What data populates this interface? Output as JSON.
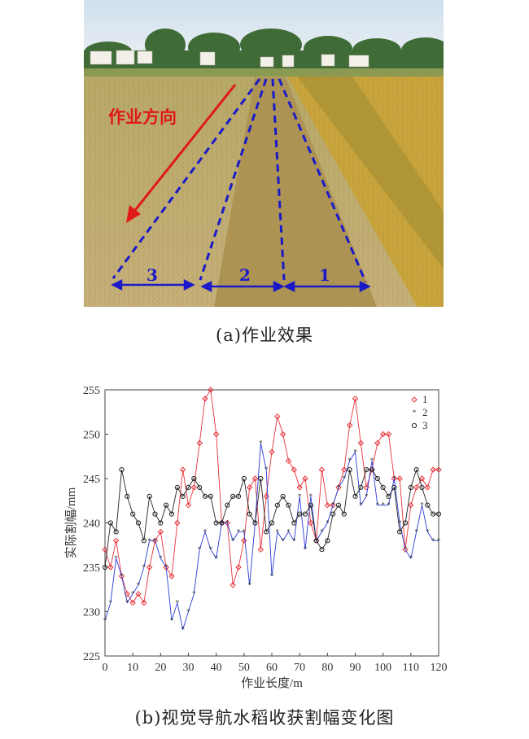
{
  "photo": {
    "direction_label": "作业方向",
    "swath_labels": [
      "3",
      "2",
      "1"
    ],
    "colors": {
      "sky": "#dfe9f2",
      "field": "#c9b46a",
      "cut": "#b59b56",
      "rice": "#c8a43a",
      "arrow": "#e11818",
      "dash": "#1a1ac8"
    }
  },
  "caption_a": "(a)作业效果",
  "caption_b": "(b)视觉导航水稻收获割幅变化图",
  "chart_data": {
    "type": "line",
    "xlabel": "作业长度/m",
    "ylabel": "实际割幅/mm",
    "xlim": [
      0,
      120
    ],
    "ylim": [
      225,
      255
    ],
    "xticks": [
      0,
      10,
      20,
      30,
      40,
      50,
      60,
      70,
      80,
      90,
      100,
      110,
      120
    ],
    "yticks": [
      225,
      230,
      235,
      240,
      245,
      250,
      255
    ],
    "legend_position": "top-right",
    "grid": false,
    "x": [
      0,
      2,
      4,
      6,
      8,
      10,
      12,
      14,
      16,
      18,
      20,
      22,
      24,
      26,
      28,
      30,
      32,
      34,
      36,
      38,
      40,
      42,
      44,
      46,
      48,
      50,
      52,
      54,
      56,
      58,
      60,
      62,
      64,
      66,
      68,
      70,
      72,
      74,
      76,
      78,
      80,
      82,
      84,
      86,
      88,
      90,
      92,
      94,
      96,
      98,
      100,
      102,
      104,
      106,
      108,
      110,
      112,
      114,
      116,
      118,
      120
    ],
    "series": [
      {
        "name": "1",
        "color": "#e8333a",
        "marker": "diamond",
        "values": [
          237,
          235,
          238,
          234,
          232,
          231,
          232,
          231,
          235,
          238,
          239,
          235,
          234,
          240,
          246,
          242,
          244,
          249,
          254,
          255,
          250,
          240,
          240,
          233,
          235,
          238,
          244,
          245,
          237,
          243,
          248,
          252,
          250,
          247,
          246,
          244,
          245,
          240,
          238,
          246,
          242,
          242,
          244,
          246,
          251,
          254,
          249,
          244,
          246,
          249,
          250,
          250,
          245,
          245,
          237,
          242,
          244,
          245,
          244,
          246,
          246
        ]
      },
      {
        "name": "2",
        "color": "#2a3bd6",
        "marker": "star",
        "values": [
          229,
          231,
          236,
          234,
          231,
          232,
          233,
          235,
          238,
          238,
          236,
          235,
          229,
          231,
          228,
          230,
          232,
          237,
          239,
          237,
          236,
          240,
          240,
          238,
          239,
          239,
          233,
          240,
          249,
          246,
          234,
          239,
          238,
          239,
          238,
          243,
          237,
          243,
          238,
          239,
          240,
          242,
          244,
          245,
          247,
          248,
          242,
          243,
          247,
          242,
          242,
          242,
          245,
          240,
          237,
          236,
          239,
          242,
          239,
          238,
          238
        ]
      },
      {
        "name": "3",
        "color": "#222222",
        "marker": "circle",
        "values": [
          235,
          240,
          239,
          246,
          243,
          241,
          240,
          238,
          243,
          241,
          240,
          242,
          241,
          244,
          243,
          244,
          245,
          244,
          243,
          243,
          240,
          240,
          242,
          243,
          243,
          245,
          241,
          240,
          245,
          239,
          240,
          242,
          243,
          242,
          240,
          241,
          241,
          242,
          238,
          237,
          238,
          241,
          242,
          241,
          246,
          243,
          244,
          246,
          246,
          245,
          244,
          243,
          244,
          239,
          240,
          244,
          246,
          244,
          242,
          241,
          241
        ]
      }
    ]
  }
}
